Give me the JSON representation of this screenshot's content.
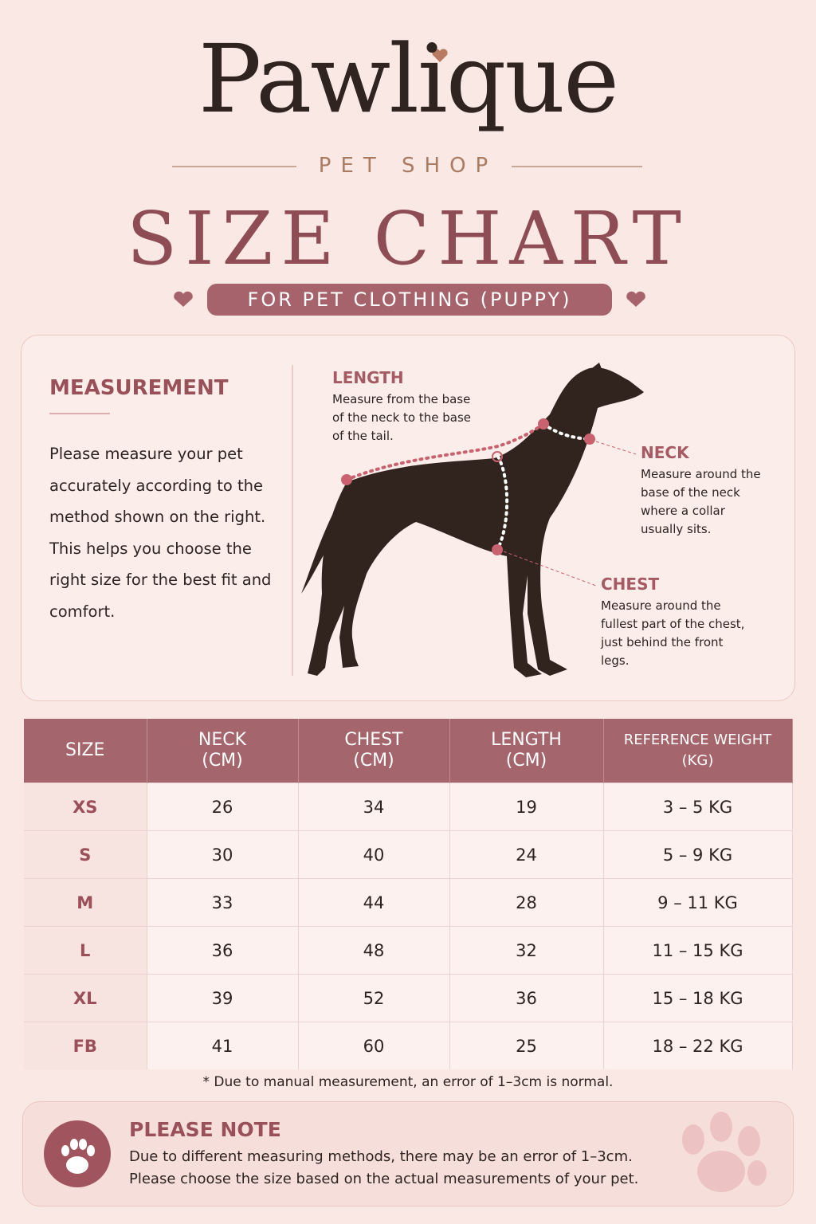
{
  "header": {
    "brand": "Pawlique",
    "subtitle": "PET SHOP",
    "title": "SIZE CHART",
    "tagline": "FOR PET CLOTHING (PUPPY)"
  },
  "measurement": {
    "heading": "MEASUREMENT",
    "text": "Please measure your pet accurately according to the method shown on the right. This helps you choose the right size for the best fit and comfort.",
    "labels": [
      {
        "title": "LENGTH",
        "text": "Measure from the base of the neck to the base of the tail."
      },
      {
        "title": "NECK",
        "text": "Measure around the base of the neck where a collar usually sits."
      },
      {
        "title": "CHEST",
        "text": "Measure around the fullest part of the chest, just behind the front legs."
      }
    ]
  },
  "table": {
    "headers": [
      {
        "label": "SIZE"
      },
      {
        "label": "NECK",
        "unit": "(CM)"
      },
      {
        "label": "CHEST",
        "unit": "(CM)"
      },
      {
        "label": "LENGTH",
        "unit": "(CM)"
      },
      {
        "label": "REFERENCE WEIGHT",
        "unit": "(KG)"
      }
    ],
    "rows": [
      [
        "XS",
        26,
        34,
        19,
        "3 – 5 KG"
      ],
      [
        "S",
        30,
        40,
        24,
        "5 – 9 KG"
      ],
      [
        "M",
        33,
        44,
        28,
        "9 – 11 KG"
      ],
      [
        "L",
        36,
        48,
        32,
        "11 – 15 KG"
      ],
      [
        "XL",
        39,
        52,
        36,
        "15 – 18 KG"
      ],
      [
        "FB",
        41,
        60,
        25,
        "18 – 22 KG"
      ]
    ]
  },
  "footnote": "* Due to manual measurement, an error of 1–3cm is normal.",
  "note": {
    "title": "PLEASE NOTE",
    "lines": [
      "Due to different measuring methods, there may be an error of 1–3cm.",
      "Please choose the size based on the actual measurements of your pet."
    ]
  }
}
